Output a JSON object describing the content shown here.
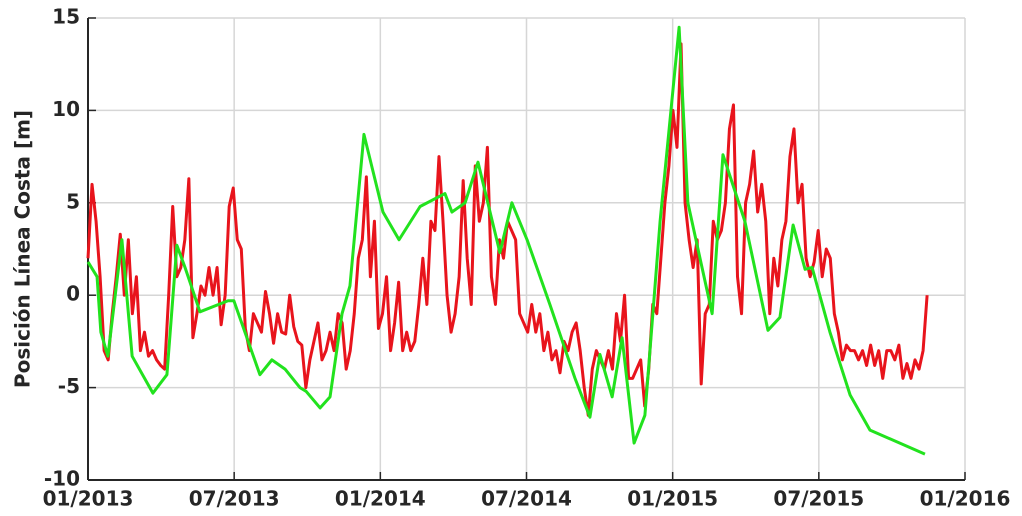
{
  "chart_data": {
    "type": "line",
    "ylabel": "Posición Línea Costa [m]",
    "xlim": [
      2013,
      2016
    ],
    "xticks": [
      {
        "value": 2013,
        "label": "01/2013"
      },
      {
        "value": 2013.5,
        "label": "07/2013"
      },
      {
        "value": 2014,
        "label": "01/2014"
      },
      {
        "value": 2014.5,
        "label": "07/2014"
      },
      {
        "value": 2015,
        "label": "01/2015"
      },
      {
        "value": 2015.5,
        "label": "07/2015"
      },
      {
        "value": 2016,
        "label": "01/2016"
      }
    ],
    "ylim": [
      -10,
      15
    ],
    "yticks": [
      -10,
      -5,
      0,
      5,
      10,
      15
    ],
    "grid": true,
    "series": [
      {
        "color": "#e8141c",
        "x": [
          2013,
          2013.0138,
          2013.0276,
          2013.0414,
          2013.0552,
          2013.069,
          2013.0828,
          2013.0966,
          2013.1104,
          2013.1242,
          2013.138,
          2013.1518,
          2013.1656,
          2013.1794,
          2013.1932,
          2013.207,
          2013.2208,
          2013.2346,
          2013.2484,
          2013.2622,
          2013.276,
          2013.2898,
          2013.3036,
          2013.3174,
          2013.3312,
          2013.345,
          2013.3588,
          2013.3726,
          2013.3864,
          2013.4002,
          2013.414,
          2013.4278,
          2013.4416,
          2013.4554,
          2013.4692,
          2013.483,
          2013.4968,
          2013.5106,
          2013.5244,
          2013.5382,
          2013.552,
          2013.5658,
          2013.5796,
          2013.5934,
          2013.6072,
          2013.621,
          2013.6348,
          2013.6486,
          2013.6624,
          2013.6762,
          2013.69,
          2013.7038,
          2013.7176,
          2013.7314,
          2013.7452,
          2013.759,
          2013.7728,
          2013.7866,
          2013.8004,
          2013.8142,
          2013.828,
          2013.8418,
          2013.8556,
          2013.8694,
          2013.8832,
          2013.897,
          2013.9108,
          2013.9246,
          2013.9384,
          2013.9522,
          2013.966,
          2013.9798,
          2013.9936,
          2014.0074,
          2014.0212,
          2014.035,
          2014.0488,
          2014.0626,
          2014.0764,
          2014.0902,
          2014.104,
          2014.1178,
          2014.1316,
          2014.1454,
          2014.1592,
          2014.173,
          2014.1868,
          2014.2006,
          2014.2144,
          2014.2282,
          2014.242,
          2014.2558,
          2014.2696,
          2014.2834,
          2014.2972,
          2014.311,
          2014.3248,
          2014.3386,
          2014.3524,
          2014.3662,
          2014.38,
          2014.3938,
          2014.4076,
          2014.4214,
          2014.4352,
          2014.449,
          2014.4628,
          2014.4766,
          2014.4904,
          2014.5042,
          2014.518,
          2014.5318,
          2014.5456,
          2014.5594,
          2014.5732,
          2014.587,
          2014.6008,
          2014.6146,
          2014.6284,
          2014.6422,
          2014.656,
          2014.6698,
          2014.6836,
          2014.6974,
          2014.7112,
          2014.725,
          2014.7388,
          2014.7526,
          2014.7664,
          2014.7802,
          2014.794,
          2014.8078,
          2014.8216,
          2014.8354,
          2014.8492,
          2014.863,
          2014.8768,
          2014.8906,
          2014.9044,
          2014.9182,
          2014.932,
          2014.9458,
          2014.9596,
          2014.9734,
          2014.9872,
          2015.001,
          2015.0148,
          2015.0286,
          2015.0424,
          2015.0562,
          2015.07,
          2015.0838,
          2015.0976,
          2015.1114,
          2015.1252,
          2015.139,
          2015.1528,
          2015.1666,
          2015.1804,
          2015.1942,
          2015.208,
          2015.2218,
          2015.2356,
          2015.2494,
          2015.2632,
          2015.277,
          2015.2908,
          2015.3046,
          2015.3184,
          2015.3322,
          2015.346,
          2015.3598,
          2015.3736,
          2015.3874,
          2015.4012,
          2015.415,
          2015.4288,
          2015.4426,
          2015.4564,
          2015.4702,
          2015.484,
          2015.4978,
          2015.5116,
          2015.5254,
          2015.5392,
          2015.553,
          2015.5668,
          2015.5806,
          2015.5944,
          2015.6082,
          2015.622,
          2015.6358,
          2015.6496,
          2015.6634,
          2015.6772,
          2015.691,
          2015.7048,
          2015.7186,
          2015.7324,
          2015.7462,
          2015.76,
          2015.7738,
          2015.7876,
          2015.8014,
          2015.8152,
          2015.829,
          2015.8428,
          2015.8566,
          2015.8704
        ],
        "values": [
          2,
          6,
          4,
          1,
          -3,
          -3.5,
          -1,
          1,
          3.3,
          0,
          3,
          -1,
          1,
          -3,
          -2,
          -3.3,
          -3,
          -3.5,
          -3.8,
          -4,
          0,
          4.8,
          1,
          1.5,
          3,
          6.3,
          -2.3,
          -1,
          0.5,
          0,
          1.5,
          0,
          1.5,
          -1.6,
          0,
          4.8,
          5.8,
          3,
          2.5,
          -1.8,
          -3,
          -1,
          -1.5,
          -2,
          0.2,
          -1,
          -2.6,
          -1,
          -2,
          -2.1,
          0,
          -1.7,
          -2.5,
          -2.7,
          -5,
          -3.5,
          -2.5,
          -1.5,
          -3.5,
          -3,
          -2,
          -3,
          -1,
          -1.5,
          -4,
          -3,
          -1,
          2,
          3,
          6.4,
          1,
          4,
          -1.8,
          -1,
          1,
          -3,
          -1.5,
          0.7,
          -3,
          -2,
          -3,
          -2.5,
          -0.5,
          2,
          -0.5,
          4,
          3.5,
          7.5,
          4,
          0,
          -2,
          -1,
          1,
          6.2,
          2,
          -0.5,
          7,
          4,
          5,
          8,
          1,
          -0.5,
          3,
          2,
          4,
          3.5,
          3,
          -1,
          -1.5,
          -2,
          -0.5,
          -2,
          -1,
          -3,
          -2,
          -3.5,
          -3,
          -4.2,
          -2.5,
          -3,
          -2,
          -1.5,
          -3,
          -5,
          -6.5,
          -4,
          -3,
          -3.5,
          -4,
          -3,
          -4,
          -1,
          -2.5,
          0,
          -4.5,
          -4.5,
          -4,
          -3.5,
          -6,
          -4,
          -0.5,
          -1,
          2,
          5,
          7,
          10,
          8,
          13.6,
          5,
          3,
          1.5,
          3,
          -4.8,
          -1,
          -0.5,
          4,
          3,
          3.5,
          5,
          9,
          10.3,
          1,
          -1,
          5,
          6,
          7.8,
          4.5,
          6,
          4,
          -1,
          2,
          0.5,
          3,
          4,
          7.5,
          9,
          5,
          6,
          2,
          1,
          1.8,
          3.5,
          1,
          2.5,
          2,
          -1,
          -2,
          -3.5,
          -2.7,
          -3,
          -3,
          -3.5,
          -3,
          -3.8,
          -2.7,
          -3.8,
          -3,
          -4.5,
          -3,
          -3,
          -3.5,
          -2.7,
          -4.5,
          -3.7,
          -4.5,
          -3.5,
          -4,
          -3,
          0
        ]
      },
      {
        "color": "#22e21e",
        "x": [
          2013,
          2013.031,
          2013.044,
          2013.068,
          2013.116,
          2013.151,
          2013.222,
          2013.27,
          2013.304,
          2013.332,
          2013.383,
          2013.479,
          2013.499,
          2013.588,
          2013.629,
          2013.674,
          2013.725,
          2013.746,
          2013.794,
          2013.828,
          2013.869,
          2013.896,
          2013.944,
          2014.009,
          2014.064,
          2014.136,
          2014.221,
          2014.245,
          2014.29,
          2014.334,
          2014.409,
          2014.45,
          2014.502,
          2014.58,
          2014.666,
          2014.717,
          2014.751,
          2014.793,
          2014.827,
          2014.868,
          2014.905,
          2014.957,
          2015.022,
          2015.052,
          2015.135,
          2015.172,
          2015.247,
          2015.326,
          2015.367,
          2015.412,
          2015.453,
          2015.477,
          2015.538,
          2015.607,
          2015.675,
          2015.863
        ],
        "values": [
          1.8,
          1,
          -2,
          -3.3,
          3,
          -3.3,
          -5.3,
          -4.3,
          2.7,
          1.5,
          -0.9,
          -0.3,
          -0.3,
          -4.3,
          -3.5,
          -4,
          -5,
          -5.2,
          -6.1,
          -5.5,
          -1,
          0.5,
          8.7,
          4.5,
          3,
          4.8,
          5.5,
          4.5,
          5,
          7.2,
          2.3,
          5,
          3,
          -0.5,
          -4.5,
          -6.6,
          -3.2,
          -5.5,
          -2.3,
          -8,
          -6.5,
          4,
          14.5,
          5,
          -1,
          7.6,
          4,
          -1.9,
          -1.2,
          3.8,
          1.4,
          1.5,
          -2,
          -5.4,
          -7.3,
          -8.6
        ]
      }
    ]
  }
}
